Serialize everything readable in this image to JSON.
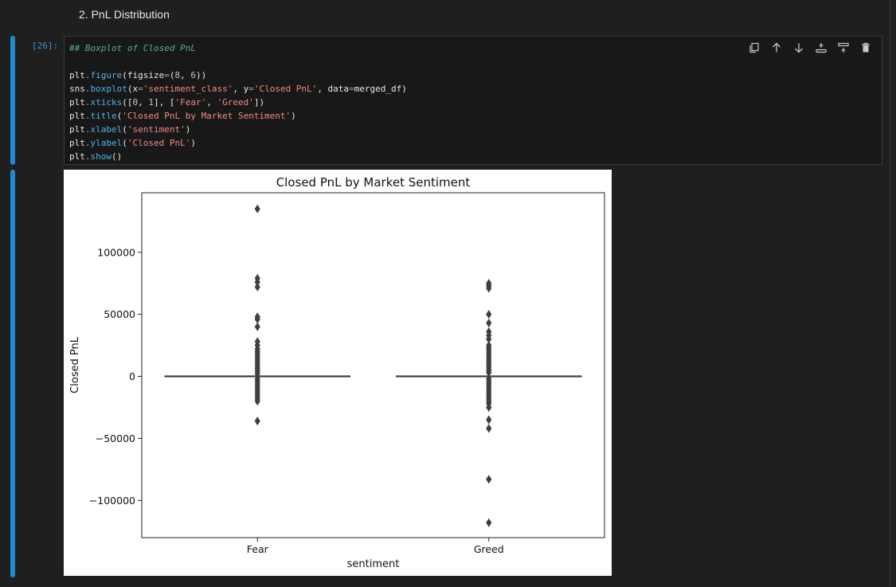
{
  "markdown": {
    "heading": "2. PnL Distribution"
  },
  "code_cell": {
    "prompt": "[26]:",
    "lines": [
      [
        {
          "t": "comment",
          "s": "## Boxplot of Closed PnL"
        }
      ],
      [],
      [
        {
          "t": "var",
          "s": "plt"
        },
        {
          "t": "op",
          "s": "."
        },
        {
          "t": "fn",
          "s": "figure"
        },
        {
          "t": "var",
          "s": "(figsize"
        },
        {
          "t": "op",
          "s": "="
        },
        {
          "t": "var",
          "s": "("
        },
        {
          "t": "num",
          "s": "8"
        },
        {
          "t": "var",
          "s": ", "
        },
        {
          "t": "num",
          "s": "6"
        },
        {
          "t": "var",
          "s": "))"
        }
      ],
      [
        {
          "t": "var",
          "s": "sns"
        },
        {
          "t": "op",
          "s": "."
        },
        {
          "t": "fn",
          "s": "boxplot"
        },
        {
          "t": "var",
          "s": "(x"
        },
        {
          "t": "op",
          "s": "="
        },
        {
          "t": "str",
          "s": "'sentiment_class'"
        },
        {
          "t": "var",
          "s": ", y"
        },
        {
          "t": "op",
          "s": "="
        },
        {
          "t": "str",
          "s": "'Closed PnL'"
        },
        {
          "t": "var",
          "s": ", data"
        },
        {
          "t": "op",
          "s": "="
        },
        {
          "t": "var",
          "s": "merged_df)"
        }
      ],
      [
        {
          "t": "var",
          "s": "plt"
        },
        {
          "t": "op",
          "s": "."
        },
        {
          "t": "fn",
          "s": "xticks"
        },
        {
          "t": "var",
          "s": "(["
        },
        {
          "t": "num",
          "s": "0"
        },
        {
          "t": "var",
          "s": ", "
        },
        {
          "t": "num",
          "s": "1"
        },
        {
          "t": "var",
          "s": "], ["
        },
        {
          "t": "str",
          "s": "'Fear'"
        },
        {
          "t": "var",
          "s": ", "
        },
        {
          "t": "str",
          "s": "'Greed'"
        },
        {
          "t": "var",
          "s": "])"
        }
      ],
      [
        {
          "t": "var",
          "s": "plt"
        },
        {
          "t": "op",
          "s": "."
        },
        {
          "t": "fn",
          "s": "title"
        },
        {
          "t": "var",
          "s": "("
        },
        {
          "t": "str",
          "s": "'Closed PnL by Market Sentiment'"
        },
        {
          "t": "var",
          "s": ")"
        }
      ],
      [
        {
          "t": "var",
          "s": "plt"
        },
        {
          "t": "op",
          "s": "."
        },
        {
          "t": "fn",
          "s": "xlabel"
        },
        {
          "t": "var",
          "s": "("
        },
        {
          "t": "str",
          "s": "'sentiment'"
        },
        {
          "t": "var",
          "s": ")"
        }
      ],
      [
        {
          "t": "var",
          "s": "plt"
        },
        {
          "t": "op",
          "s": "."
        },
        {
          "t": "fn",
          "s": "ylabel"
        },
        {
          "t": "var",
          "s": "("
        },
        {
          "t": "str",
          "s": "'Closed PnL'"
        },
        {
          "t": "var",
          "s": ")"
        }
      ],
      [
        {
          "t": "var",
          "s": "plt"
        },
        {
          "t": "op",
          "s": "."
        },
        {
          "t": "fn",
          "s": "show"
        },
        {
          "t": "var",
          "s": "()"
        }
      ]
    ]
  },
  "toolbar": [
    {
      "name": "copy-cell-icon"
    },
    {
      "name": "move-up-icon"
    },
    {
      "name": "move-down-icon"
    },
    {
      "name": "insert-cell-icon"
    },
    {
      "name": "split-cell-icon"
    },
    {
      "name": "delete-icon"
    }
  ],
  "colors": {
    "accent": "#1f8ad2",
    "box": "#3f3f3f"
  },
  "chart_data": {
    "type": "boxplot",
    "title": "Closed PnL by Market Sentiment",
    "xlabel": "sentiment",
    "ylabel": "Closed PnL",
    "categories": [
      "Fear",
      "Greed"
    ],
    "ylim": [
      -130000,
      148000
    ],
    "yticks": [
      -100000,
      -50000,
      0,
      50000,
      100000
    ],
    "ytick_labels": [
      "−100000",
      "−50000",
      "0",
      "50000",
      "100000"
    ],
    "grid": false,
    "boxes": [
      {
        "category": "Fear",
        "q1": 0,
        "median": 0,
        "q3": 0,
        "whisker_low": 0,
        "whisker_high": 0,
        "outliers": [
          135000,
          79000,
          76000,
          72000,
          48000,
          46000,
          40000,
          28000,
          25000,
          22000,
          20000,
          18000,
          16000,
          14000,
          12000,
          10000,
          8000,
          6000,
          4000,
          2000,
          -2000,
          -4000,
          -6000,
          -8000,
          -10000,
          -12000,
          -14000,
          -16000,
          -18000,
          -20000,
          -36000
        ]
      },
      {
        "category": "Greed",
        "q1": 0,
        "median": 0,
        "q3": 0,
        "whisker_low": 0,
        "whisker_high": 0,
        "outliers": [
          75000,
          73000,
          71000,
          50000,
          43000,
          36000,
          33000,
          30000,
          25000,
          23000,
          21000,
          19000,
          17000,
          15000,
          13000,
          11000,
          9000,
          7000,
          5000,
          3000,
          -2000,
          -4000,
          -6000,
          -8000,
          -10000,
          -12000,
          -14000,
          -16000,
          -18000,
          -20000,
          -22000,
          -25000,
          -35000,
          -42000,
          -83000,
          -118000
        ]
      }
    ]
  }
}
